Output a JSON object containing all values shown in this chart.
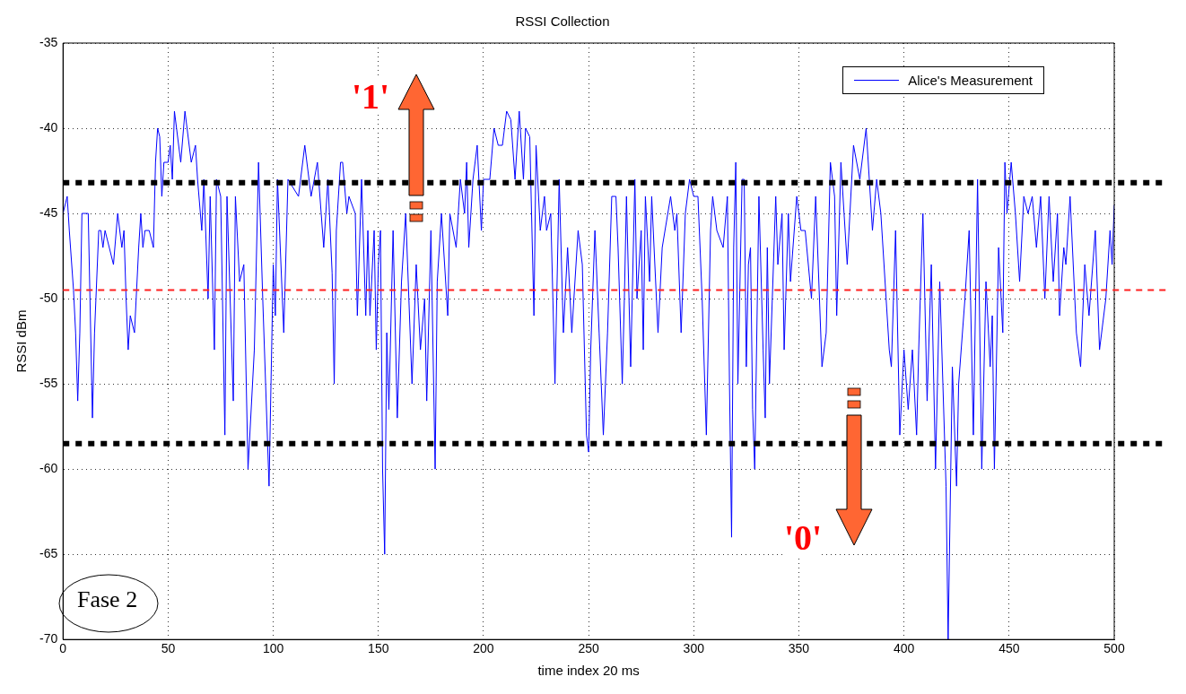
{
  "chart_data": {
    "type": "line",
    "title": "RSSI Collection",
    "xlabel": "time index 20 ms",
    "ylabel": "RSSI dBm",
    "xlim": [
      0,
      500
    ],
    "xticks": [
      0,
      50,
      100,
      150,
      200,
      250,
      300,
      350,
      400,
      450,
      500
    ],
    "ylim": [
      -70,
      -35
    ],
    "yticks": [
      -70,
      -65,
      -60,
      -55,
      -50,
      -45,
      -40,
      -35
    ],
    "grid": true,
    "legend": "top right",
    "line_style": "solid",
    "marker": "none",
    "series": [
      {
        "name": "Alice's Measurement",
        "color": "#0000ff",
        "x": [
          0,
          2,
          3,
          5,
          6,
          7,
          8,
          9,
          12,
          14,
          15,
          17,
          18,
          19,
          20,
          22,
          24,
          26,
          28,
          29,
          30,
          31,
          32,
          34,
          36,
          37,
          38,
          39,
          41,
          43,
          44,
          45,
          46,
          47,
          48,
          50,
          51,
          52,
          53,
          56,
          58,
          61,
          63,
          64,
          66,
          67,
          69,
          70,
          72,
          73,
          75,
          77,
          78,
          81,
          82,
          84,
          86,
          88,
          91,
          93,
          95,
          98,
          100,
          101,
          102,
          105,
          107,
          112,
          115,
          118,
          121,
          124,
          126,
          128,
          129,
          130,
          132,
          133,
          135,
          136,
          139,
          140,
          142,
          144,
          145,
          146,
          148,
          149,
          150,
          151,
          152,
          153,
          154,
          155,
          157,
          159,
          161,
          163,
          166,
          168,
          170,
          172,
          173,
          175,
          177,
          178,
          180,
          183,
          184,
          187,
          189,
          191,
          192,
          193,
          195,
          197,
          199,
          200,
          203,
          205,
          207,
          209,
          211,
          213,
          215,
          217,
          219,
          220,
          222,
          224,
          225,
          227,
          229,
          230,
          232,
          234,
          236,
          238,
          240,
          242,
          245,
          247,
          249,
          250,
          251,
          253,
          255,
          257,
          259,
          261,
          263,
          264,
          266,
          267,
          268,
          270,
          272,
          273,
          275,
          276,
          277,
          279,
          280,
          283,
          285,
          289,
          291,
          292,
          294,
          296,
          298,
          300,
          302,
          304,
          306,
          308,
          309,
          311,
          314,
          316,
          317,
          318,
          319,
          320,
          321,
          323,
          324,
          325,
          326,
          327,
          328,
          329,
          331,
          333,
          334,
          335,
          336,
          339,
          340,
          342,
          343,
          345,
          346,
          349,
          351,
          353,
          356,
          358,
          361,
          363,
          365,
          367,
          368,
          370,
          373,
          376,
          379,
          382,
          385,
          387,
          389,
          393,
          394,
          396,
          398,
          400,
          402,
          404,
          406,
          407,
          409,
          411,
          413,
          415,
          417,
          420,
          421,
          423,
          425,
          426,
          429,
          431,
          433,
          435,
          437,
          439,
          441,
          442,
          443,
          445,
          447,
          448,
          449,
          451,
          453,
          455,
          457,
          459,
          461,
          463,
          465,
          467,
          469,
          471,
          473,
          474,
          476,
          477,
          479,
          482,
          484,
          486,
          488,
          491,
          493,
          496,
          498,
          499,
          500
        ],
        "values": [
          -45,
          -44,
          -46,
          -49.5,
          -52,
          -56,
          -52,
          -45,
          -45,
          -57,
          -52,
          -46,
          -46,
          -47,
          -46,
          -47,
          -48,
          -45,
          -47,
          -46,
          -50,
          -53,
          -51,
          -52,
          -47,
          -45,
          -47,
          -46,
          -46,
          -47,
          -42,
          -40,
          -40.5,
          -44,
          -42,
          -42,
          -41,
          -43,
          -39,
          -42,
          -39,
          -42,
          -41,
          -43,
          -46,
          -43,
          -50,
          -44,
          -53,
          -43,
          -44,
          -58,
          -44,
          -56,
          -44,
          -49,
          -48,
          -60,
          -53,
          -42,
          -50,
          -61,
          -48,
          -51,
          -43,
          -52,
          -43,
          -44,
          -41,
          -44,
          -42,
          -47,
          -43,
          -48.5,
          -55,
          -46,
          -42,
          -42,
          -45,
          -44,
          -45,
          -51,
          -43,
          -51,
          -46,
          -51,
          -46,
          -53,
          -48,
          -46,
          -60,
          -65,
          -52,
          -56.5,
          -46,
          -57,
          -49,
          -45,
          -55,
          -48,
          -53,
          -50,
          -56,
          -46,
          -60,
          -49,
          -45,
          -51,
          -45,
          -47,
          -43,
          -45,
          -42,
          -47,
          -43,
          -41,
          -46,
          -43,
          -43,
          -40,
          -41,
          -41,
          -39,
          -39.5,
          -43,
          -39,
          -43,
          -40,
          -40.5,
          -51,
          -41,
          -46,
          -44,
          -46,
          -45,
          -55,
          -43,
          -52,
          -47,
          -52,
          -46,
          -48,
          -58,
          -59,
          -53,
          -46,
          -52,
          -58,
          -52,
          -44,
          -44,
          -47,
          -55,
          -50,
          -44,
          -54,
          -43,
          -50,
          -46,
          -53,
          -44,
          -49,
          -44,
          -52,
          -47,
          -44,
          -46,
          -45,
          -52,
          -45,
          -43,
          -44,
          -44,
          -50,
          -58,
          -46,
          -44,
          -46,
          -47,
          -44,
          -55,
          -64,
          -47,
          -42,
          -55,
          -43,
          -43,
          -54,
          -48,
          -47,
          -56.5,
          -60,
          -44,
          -53,
          -57,
          -47,
          -55,
          -44,
          -48,
          -45,
          -53,
          -45,
          -49,
          -44,
          -46,
          -46,
          -50,
          -44,
          -54,
          -52,
          -42,
          -44,
          -51,
          -42,
          -48,
          -41,
          -43,
          -40,
          -46,
          -43,
          -45,
          -53,
          -54,
          -46,
          -58,
          -53,
          -56.5,
          -53,
          -58,
          -53,
          -45,
          -56,
          -48,
          -60,
          -49,
          -61,
          -70,
          -54,
          -61,
          -55,
          -50,
          -46,
          -58,
          -43,
          -60,
          -49,
          -54,
          -51,
          -60,
          -47,
          -52,
          -42,
          -45,
          -42,
          -45,
          -49,
          -44,
          -45,
          -44,
          -47,
          -44,
          -50,
          -44,
          -49,
          -45,
          -51,
          -47,
          -48,
          -44,
          -52,
          -54,
          -48,
          -51,
          -46,
          -53,
          -50,
          -46,
          -48,
          -44.5
        ]
      }
    ],
    "ref_lines": [
      {
        "axis": "y",
        "value": -43.2,
        "color": "#000000",
        "line_style": "dotted"
      },
      {
        "axis": "y",
        "value": -49.5,
        "color": "#ff2020",
        "line_style": "dashed"
      },
      {
        "axis": "y",
        "value": -58.5,
        "color": "#000000",
        "line_style": "dotted"
      }
    ],
    "annotations": [
      "'1'",
      "'0'",
      "Fase 2"
    ]
  }
}
